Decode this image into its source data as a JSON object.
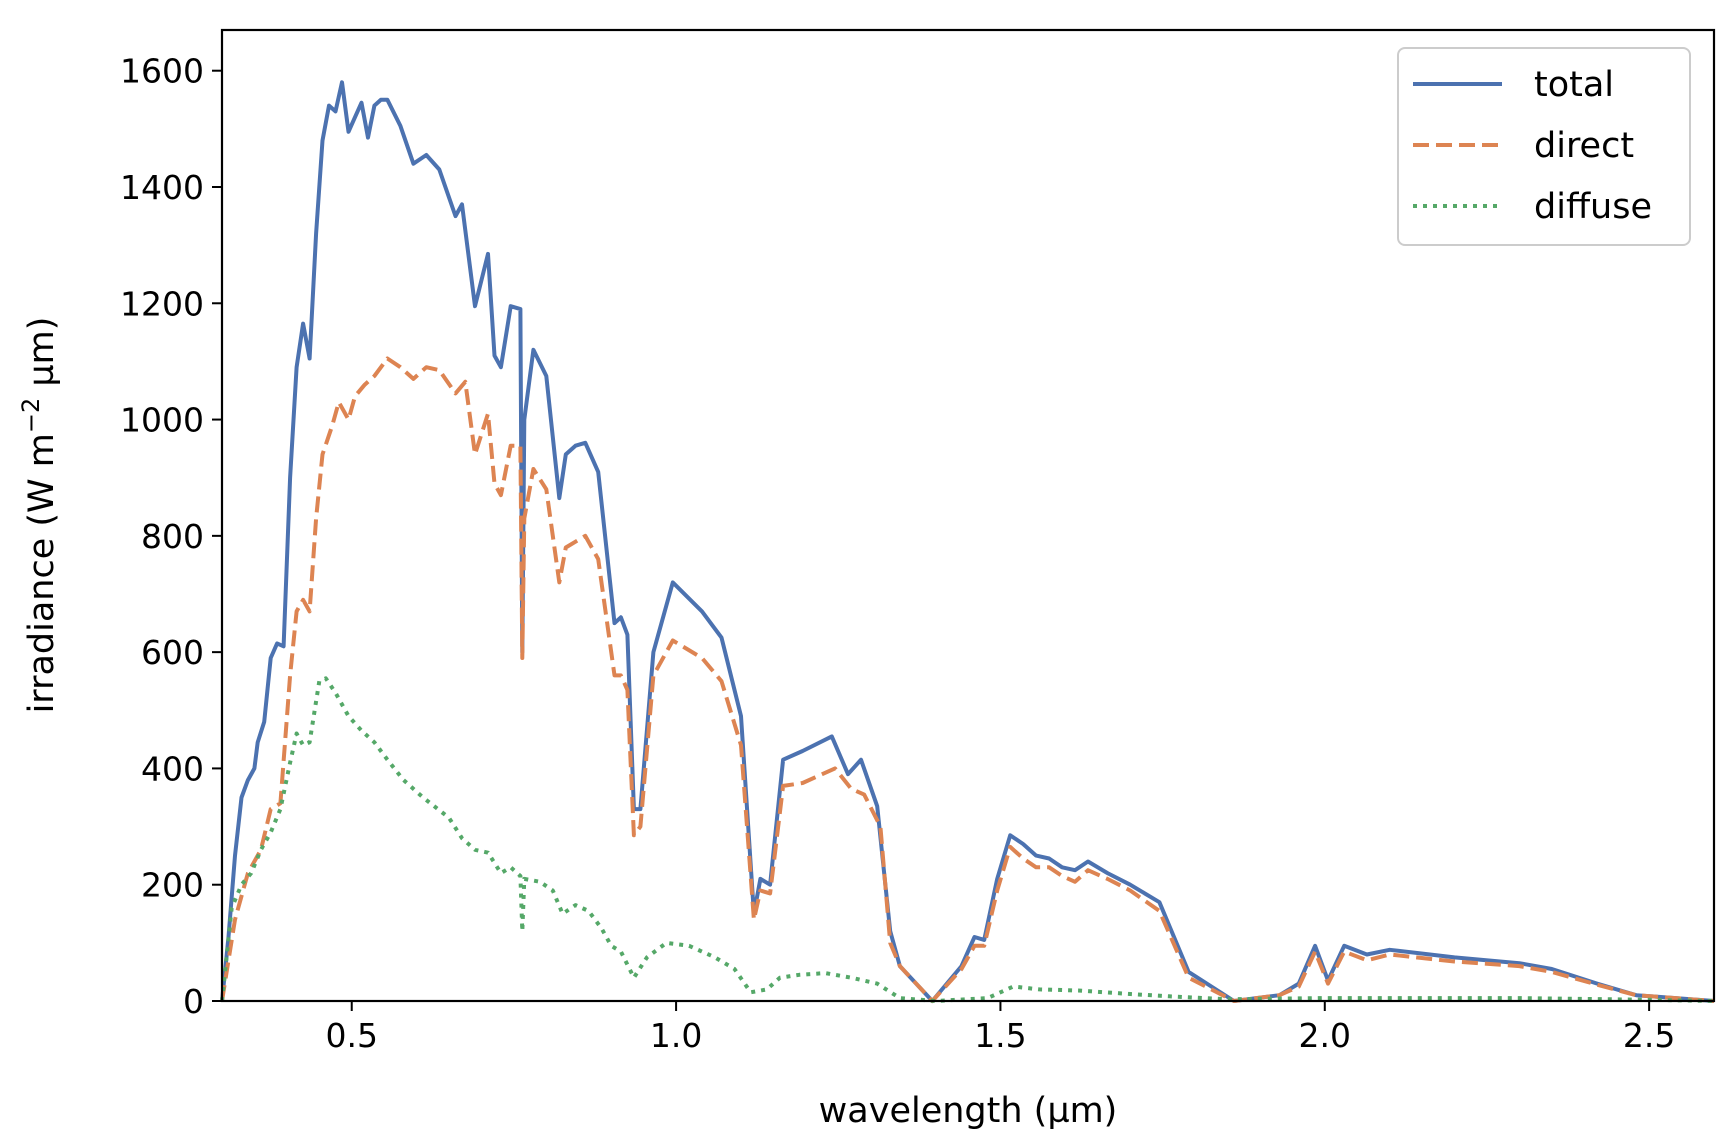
{
  "chart_data": {
    "type": "line",
    "title": "",
    "xlabel": "wavelength (µm)",
    "ylabel_parts": {
      "pre": "irradiance (W m",
      "exp": "−2",
      "post": " µm)"
    },
    "xlim": [
      0.3,
      2.6
    ],
    "ylim": [
      0,
      1670
    ],
    "xticks": [
      0.5,
      1.0,
      1.5,
      2.0,
      2.5
    ],
    "xtick_labels": [
      "0.5",
      "1.0",
      "1.5",
      "2.0",
      "2.5"
    ],
    "yticks": [
      0,
      200,
      400,
      600,
      800,
      1000,
      1200,
      1400,
      1600
    ],
    "ytick_labels": [
      "0",
      "200",
      "400",
      "600",
      "800",
      "1000",
      "1200",
      "1400",
      "1600"
    ],
    "grid": false,
    "legend_position": "top-right",
    "series": [
      {
        "name": "total",
        "color": "#4c72b0",
        "style": "solid",
        "points": [
          [
            0.3,
            0
          ],
          [
            0.31,
            110
          ],
          [
            0.32,
            250
          ],
          [
            0.33,
            350
          ],
          [
            0.34,
            380
          ],
          [
            0.35,
            400
          ],
          [
            0.355,
            445
          ],
          [
            0.365,
            480
          ],
          [
            0.375,
            590
          ],
          [
            0.385,
            615
          ],
          [
            0.395,
            610
          ],
          [
            0.405,
            900
          ],
          [
            0.415,
            1090
          ],
          [
            0.425,
            1165
          ],
          [
            0.435,
            1105
          ],
          [
            0.445,
            1320
          ],
          [
            0.455,
            1480
          ],
          [
            0.465,
            1540
          ],
          [
            0.475,
            1530
          ],
          [
            0.485,
            1580
          ],
          [
            0.495,
            1495
          ],
          [
            0.505,
            1520
          ],
          [
            0.515,
            1545
          ],
          [
            0.525,
            1485
          ],
          [
            0.535,
            1540
          ],
          [
            0.545,
            1550
          ],
          [
            0.555,
            1550
          ],
          [
            0.575,
            1505
          ],
          [
            0.595,
            1440
          ],
          [
            0.615,
            1455
          ],
          [
            0.635,
            1430
          ],
          [
            0.66,
            1350
          ],
          [
            0.67,
            1370
          ],
          [
            0.69,
            1195
          ],
          [
            0.71,
            1285
          ],
          [
            0.72,
            1110
          ],
          [
            0.73,
            1090
          ],
          [
            0.745,
            1195
          ],
          [
            0.76,
            1190
          ],
          [
            0.763,
            600
          ],
          [
            0.766,
            1000
          ],
          [
            0.78,
            1120
          ],
          [
            0.8,
            1075
          ],
          [
            0.82,
            865
          ],
          [
            0.83,
            940
          ],
          [
            0.845,
            955
          ],
          [
            0.86,
            960
          ],
          [
            0.88,
            910
          ],
          [
            0.905,
            650
          ],
          [
            0.915,
            660
          ],
          [
            0.925,
            630
          ],
          [
            0.935,
            330
          ],
          [
            0.945,
            330
          ],
          [
            0.965,
            600
          ],
          [
            0.995,
            720
          ],
          [
            1.04,
            670
          ],
          [
            1.07,
            625
          ],
          [
            1.1,
            490
          ],
          [
            1.12,
            150
          ],
          [
            1.13,
            210
          ],
          [
            1.145,
            200
          ],
          [
            1.165,
            415
          ],
          [
            1.195,
            430
          ],
          [
            1.24,
            455
          ],
          [
            1.265,
            390
          ],
          [
            1.285,
            415
          ],
          [
            1.31,
            335
          ],
          [
            1.33,
            120
          ],
          [
            1.345,
            60
          ],
          [
            1.395,
            0
          ],
          [
            1.44,
            60
          ],
          [
            1.46,
            110
          ],
          [
            1.475,
            105
          ],
          [
            1.495,
            210
          ],
          [
            1.515,
            285
          ],
          [
            1.535,
            270
          ],
          [
            1.555,
            250
          ],
          [
            1.575,
            245
          ],
          [
            1.595,
            230
          ],
          [
            1.615,
            225
          ],
          [
            1.635,
            240
          ],
          [
            1.665,
            220
          ],
          [
            1.7,
            200
          ],
          [
            1.745,
            170
          ],
          [
            1.79,
            50
          ],
          [
            1.86,
            0
          ],
          [
            1.93,
            10
          ],
          [
            1.96,
            30
          ],
          [
            1.985,
            95
          ],
          [
            2.005,
            35
          ],
          [
            2.03,
            95
          ],
          [
            2.065,
            80
          ],
          [
            2.1,
            88
          ],
          [
            2.2,
            75
          ],
          [
            2.3,
            65
          ],
          [
            2.35,
            55
          ],
          [
            2.42,
            30
          ],
          [
            2.48,
            10
          ],
          [
            2.6,
            0
          ]
        ]
      },
      {
        "name": "direct",
        "color": "#dd8452",
        "style": "dashed",
        "points": [
          [
            0.3,
            0
          ],
          [
            0.32,
            140
          ],
          [
            0.34,
            220
          ],
          [
            0.36,
            260
          ],
          [
            0.375,
            330
          ],
          [
            0.39,
            340
          ],
          [
            0.405,
            560
          ],
          [
            0.415,
            670
          ],
          [
            0.425,
            690
          ],
          [
            0.435,
            670
          ],
          [
            0.445,
            830
          ],
          [
            0.455,
            940
          ],
          [
            0.47,
            990
          ],
          [
            0.48,
            1030
          ],
          [
            0.495,
            1000
          ],
          [
            0.505,
            1040
          ],
          [
            0.52,
            1060
          ],
          [
            0.535,
            1075
          ],
          [
            0.555,
            1105
          ],
          [
            0.575,
            1090
          ],
          [
            0.595,
            1070
          ],
          [
            0.615,
            1090
          ],
          [
            0.635,
            1085
          ],
          [
            0.66,
            1045
          ],
          [
            0.675,
            1065
          ],
          [
            0.69,
            940
          ],
          [
            0.71,
            1010
          ],
          [
            0.72,
            890
          ],
          [
            0.73,
            870
          ],
          [
            0.745,
            955
          ],
          [
            0.76,
            955
          ],
          [
            0.763,
            590
          ],
          [
            0.766,
            830
          ],
          [
            0.78,
            915
          ],
          [
            0.8,
            880
          ],
          [
            0.82,
            720
          ],
          [
            0.83,
            780
          ],
          [
            0.845,
            790
          ],
          [
            0.86,
            800
          ],
          [
            0.88,
            760
          ],
          [
            0.905,
            560
          ],
          [
            0.915,
            560
          ],
          [
            0.925,
            535
          ],
          [
            0.935,
            285
          ],
          [
            0.945,
            300
          ],
          [
            0.965,
            560
          ],
          [
            0.995,
            620
          ],
          [
            1.04,
            590
          ],
          [
            1.07,
            550
          ],
          [
            1.1,
            440
          ],
          [
            1.12,
            140
          ],
          [
            1.13,
            190
          ],
          [
            1.145,
            185
          ],
          [
            1.165,
            370
          ],
          [
            1.195,
            375
          ],
          [
            1.245,
            400
          ],
          [
            1.27,
            365
          ],
          [
            1.29,
            355
          ],
          [
            1.315,
            300
          ],
          [
            1.33,
            100
          ],
          [
            1.345,
            60
          ],
          [
            1.395,
            0
          ],
          [
            1.44,
            55
          ],
          [
            1.46,
            95
          ],
          [
            1.475,
            95
          ],
          [
            1.495,
            190
          ],
          [
            1.515,
            265
          ],
          [
            1.535,
            245
          ],
          [
            1.555,
            230
          ],
          [
            1.575,
            230
          ],
          [
            1.595,
            215
          ],
          [
            1.615,
            205
          ],
          [
            1.635,
            225
          ],
          [
            1.665,
            210
          ],
          [
            1.7,
            190
          ],
          [
            1.745,
            155
          ],
          [
            1.79,
            40
          ],
          [
            1.86,
            0
          ],
          [
            1.93,
            10
          ],
          [
            1.96,
            25
          ],
          [
            1.985,
            85
          ],
          [
            2.005,
            30
          ],
          [
            2.03,
            85
          ],
          [
            2.065,
            70
          ],
          [
            2.1,
            80
          ],
          [
            2.2,
            68
          ],
          [
            2.3,
            60
          ],
          [
            2.35,
            50
          ],
          [
            2.42,
            28
          ],
          [
            2.48,
            10
          ],
          [
            2.6,
            0
          ]
        ]
      },
      {
        "name": "diffuse",
        "color": "#55a868",
        "style": "dotted",
        "points": [
          [
            0.3,
            0
          ],
          [
            0.315,
            160
          ],
          [
            0.33,
            200
          ],
          [
            0.345,
            220
          ],
          [
            0.36,
            260
          ],
          [
            0.375,
            290
          ],
          [
            0.39,
            330
          ],
          [
            0.405,
            410
          ],
          [
            0.415,
            460
          ],
          [
            0.425,
            440
          ],
          [
            0.435,
            445
          ],
          [
            0.45,
            550
          ],
          [
            0.46,
            555
          ],
          [
            0.475,
            530
          ],
          [
            0.495,
            490
          ],
          [
            0.515,
            465
          ],
          [
            0.535,
            445
          ],
          [
            0.555,
            415
          ],
          [
            0.58,
            380
          ],
          [
            0.61,
            350
          ],
          [
            0.65,
            315
          ],
          [
            0.67,
            280
          ],
          [
            0.69,
            260
          ],
          [
            0.71,
            255
          ],
          [
            0.73,
            220
          ],
          [
            0.745,
            230
          ],
          [
            0.76,
            215
          ],
          [
            0.763,
            120
          ],
          [
            0.766,
            210
          ],
          [
            0.79,
            205
          ],
          [
            0.81,
            190
          ],
          [
            0.825,
            150
          ],
          [
            0.845,
            165
          ],
          [
            0.865,
            155
          ],
          [
            0.885,
            125
          ],
          [
            0.9,
            95
          ],
          [
            0.915,
            85
          ],
          [
            0.935,
            40
          ],
          [
            0.955,
            75
          ],
          [
            0.985,
            100
          ],
          [
            1.02,
            95
          ],
          [
            1.06,
            75
          ],
          [
            1.09,
            55
          ],
          [
            1.115,
            15
          ],
          [
            1.14,
            20
          ],
          [
            1.16,
            40
          ],
          [
            1.19,
            45
          ],
          [
            1.23,
            48
          ],
          [
            1.27,
            40
          ],
          [
            1.31,
            30
          ],
          [
            1.345,
            5
          ],
          [
            1.4,
            0
          ],
          [
            1.48,
            5
          ],
          [
            1.52,
            25
          ],
          [
            1.56,
            20
          ],
          [
            1.62,
            18
          ],
          [
            1.7,
            12
          ],
          [
            1.76,
            8
          ],
          [
            1.85,
            3
          ],
          [
            2.0,
            5
          ],
          [
            2.1,
            5
          ],
          [
            2.3,
            5
          ],
          [
            2.5,
            2
          ],
          [
            2.6,
            0
          ]
        ]
      }
    ]
  }
}
